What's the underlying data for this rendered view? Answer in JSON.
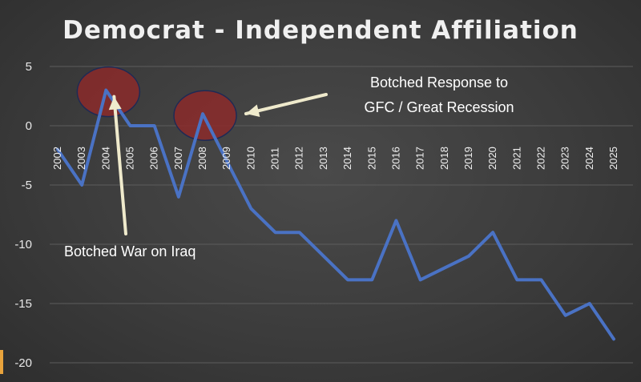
{
  "chart_data": {
    "type": "line",
    "title": "Democrat - Independent Affiliation",
    "xlabel": "",
    "ylabel": "",
    "ylim": [
      -20,
      5
    ],
    "yticks": [
      5,
      0,
      -5,
      -10,
      -15,
      -20
    ],
    "grid": true,
    "x": [
      "2002",
      "2003",
      "2004",
      "2005",
      "2006",
      "2007",
      "2008",
      "2009",
      "2010",
      "2011",
      "2012",
      "2013",
      "2014",
      "2015",
      "2016",
      "2017",
      "2018",
      "2019",
      "2020",
      "2021",
      "2022",
      "2023",
      "2024",
      "2025"
    ],
    "series": [
      {
        "values": [
          -2,
          -5,
          3,
          0,
          0,
          -6,
          1,
          -3,
          -7,
          -9,
          -9,
          -11,
          -13,
          -13,
          -8,
          -13,
          -12,
          -11,
          -9,
          -13,
          -13,
          -16,
          -15,
          -18
        ]
      }
    ],
    "annotations": [
      {
        "text": "Botched War on Iraq",
        "target_year": "2004"
      },
      {
        "text_lines": [
          "Botched Response to",
          "GFC / Great Recession"
        ],
        "target_year": "2008"
      }
    ],
    "colors": {
      "line": "#4a72c4",
      "highlight_fill": "#8b2a2a",
      "highlight_stroke": "#1e2a55",
      "arrow": "#efeacc",
      "grid": "#5c5c5c"
    }
  }
}
